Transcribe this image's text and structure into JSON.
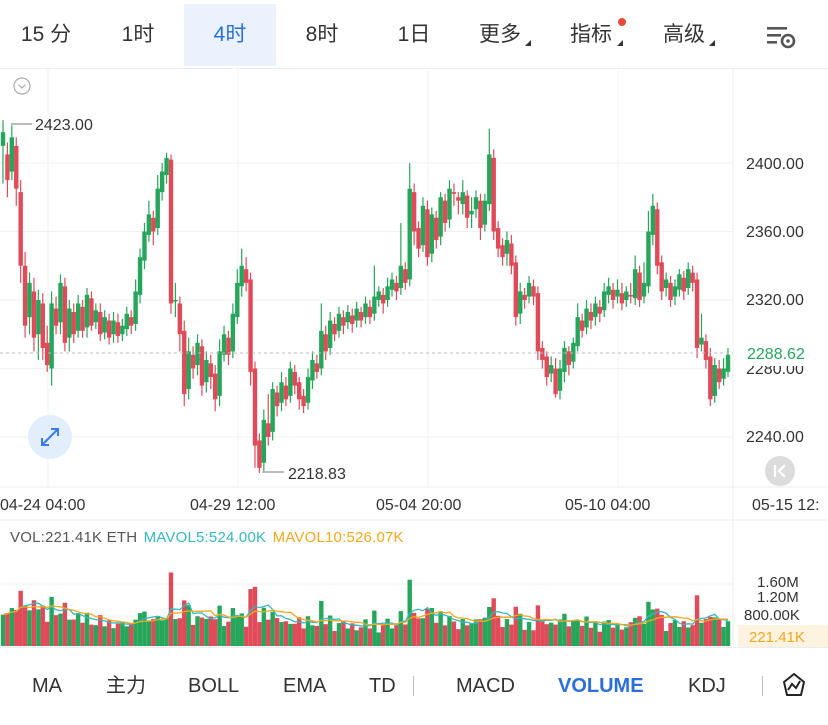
{
  "timeframes": [
    {
      "label": "15 分",
      "active": false
    },
    {
      "label": "1时",
      "active": false
    },
    {
      "label": "4时",
      "active": true
    },
    {
      "label": "8时",
      "active": false
    },
    {
      "label": "1日",
      "active": false
    },
    {
      "label": "更多",
      "active": false
    },
    {
      "label": "指标",
      "active": false
    },
    {
      "label": "高级",
      "active": false
    }
  ],
  "colors": {
    "up": "#26a65b",
    "down": "#e04b5a",
    "accent": "#2a6fdb",
    "mavol5": "#35b7bf",
    "mavol10": "#f0a81e"
  },
  "chart_data": {
    "type": "candlestick",
    "y_ticks": [
      "2400.00",
      "2360.00",
      "2320.00",
      "2280.00",
      "2240.00"
    ],
    "x_ticks": [
      "04-24 04:00",
      "04-29 12:00",
      "05-04 20:00",
      "05-10 04:00",
      "05-15 12:"
    ],
    "high_label": "2423.00",
    "low_label": "2218.83",
    "last_price": "2288.62",
    "candles": [
      [
        2410,
        2418,
        2388,
        2425
      ],
      [
        2405,
        2390,
        2380,
        2412
      ],
      [
        2395,
        2415,
        2390,
        2422
      ],
      [
        2410,
        2385,
        2375,
        2415
      ],
      [
        2383,
        2340,
        2330,
        2390
      ],
      [
        2340,
        2305,
        2298,
        2348
      ],
      [
        2310,
        2330,
        2300,
        2336
      ],
      [
        2325,
        2298,
        2290,
        2333
      ],
      [
        2300,
        2320,
        2285,
        2326
      ],
      [
        2318,
        2292,
        2285,
        2324
      ],
      [
        2295,
        2282,
        2278,
        2305
      ],
      [
        2280,
        2318,
        2270,
        2325
      ],
      [
        2315,
        2305,
        2300,
        2322
      ],
      [
        2307,
        2330,
        2300,
        2335
      ],
      [
        2328,
        2295,
        2290,
        2333
      ],
      [
        2298,
        2315,
        2290,
        2320
      ],
      [
        2313,
        2300,
        2295,
        2318
      ],
      [
        2302,
        2318,
        2298,
        2323
      ],
      [
        2316,
        2302,
        2298,
        2320
      ],
      [
        2304,
        2323,
        2298,
        2327
      ],
      [
        2321,
        2305,
        2302,
        2325
      ],
      [
        2307,
        2314,
        2303,
        2318
      ],
      [
        2313,
        2300,
        2296,
        2318
      ],
      [
        2301,
        2310,
        2297,
        2314
      ],
      [
        2308,
        2298,
        2294,
        2312
      ],
      [
        2300,
        2308,
        2295,
        2313
      ],
      [
        2307,
        2299,
        2295,
        2312
      ],
      [
        2300,
        2305,
        2296,
        2309
      ],
      [
        2303,
        2312,
        2299,
        2316
      ],
      [
        2310,
        2305,
        2300,
        2314
      ],
      [
        2306,
        2325,
        2302,
        2332
      ],
      [
        2323,
        2345,
        2318,
        2350
      ],
      [
        2343,
        2360,
        2338,
        2365
      ],
      [
        2358,
        2370,
        2354,
        2378
      ],
      [
        2368,
        2360,
        2352,
        2372
      ],
      [
        2362,
        2385,
        2358,
        2393
      ],
      [
        2383,
        2395,
        2378,
        2400
      ],
      [
        2393,
        2403,
        2388,
        2406
      ],
      [
        2402,
        2318,
        2312,
        2405
      ],
      [
        2320,
        2320,
        2310,
        2330
      ],
      [
        2318,
        2300,
        2290,
        2322
      ],
      [
        2302,
        2265,
        2258,
        2308
      ],
      [
        2268,
        2290,
        2262,
        2298
      ],
      [
        2288,
        2280,
        2274,
        2293
      ],
      [
        2282,
        2295,
        2276,
        2300
      ],
      [
        2293,
        2270,
        2264,
        2297
      ],
      [
        2272,
        2285,
        2266,
        2290
      ],
      [
        2283,
        2275,
        2268,
        2288
      ],
      [
        2277,
        2262,
        2255,
        2282
      ],
      [
        2264,
        2290,
        2258,
        2297
      ],
      [
        2288,
        2300,
        2284,
        2305
      ],
      [
        2298,
        2288,
        2282,
        2302
      ],
      [
        2290,
        2312,
        2286,
        2318
      ],
      [
        2310,
        2330,
        2306,
        2338
      ],
      [
        2328,
        2340,
        2322,
        2350
      ],
      [
        2338,
        2330,
        2325,
        2345
      ],
      [
        2332,
        2278,
        2270,
        2336
      ],
      [
        2280,
        2235,
        2222,
        2284
      ],
      [
        2238,
        2222,
        2219,
        2242
      ],
      [
        2225,
        2250,
        2220,
        2256
      ],
      [
        2248,
        2240,
        2235,
        2265
      ],
      [
        2243,
        2268,
        2238,
        2272
      ],
      [
        2266,
        2258,
        2252,
        2270
      ],
      [
        2260,
        2272,
        2255,
        2278
      ],
      [
        2270,
        2262,
        2258,
        2275
      ],
      [
        2264,
        2280,
        2260,
        2284
      ],
      [
        2278,
        2270,
        2265,
        2282
      ],
      [
        2272,
        2262,
        2256,
        2275
      ],
      [
        2264,
        2258,
        2254,
        2268
      ],
      [
        2260,
        2275,
        2256,
        2280
      ],
      [
        2273,
        2285,
        2268,
        2290
      ],
      [
        2283,
        2278,
        2274,
        2288
      ],
      [
        2280,
        2302,
        2276,
        2318
      ],
      [
        2300,
        2290,
        2285,
        2305
      ],
      [
        2292,
        2308,
        2288,
        2313
      ],
      [
        2306,
        2300,
        2296,
        2310
      ],
      [
        2302,
        2312,
        2298,
        2316
      ],
      [
        2310,
        2305,
        2300,
        2314
      ],
      [
        2307,
        2313,
        2303,
        2317
      ],
      [
        2311,
        2306,
        2301,
        2315
      ],
      [
        2308,
        2315,
        2304,
        2319
      ],
      [
        2313,
        2308,
        2304,
        2316
      ],
      [
        2310,
        2318,
        2306,
        2322
      ],
      [
        2316,
        2310,
        2306,
        2320
      ],
      [
        2312,
        2322,
        2308,
        2340
      ],
      [
        2320,
        2325,
        2316,
        2328
      ],
      [
        2323,
        2318,
        2312,
        2327
      ],
      [
        2320,
        2328,
        2316,
        2333
      ],
      [
        2326,
        2332,
        2322,
        2336
      ],
      [
        2330,
        2325,
        2320,
        2334
      ],
      [
        2327,
        2340,
        2323,
        2365
      ],
      [
        2338,
        2330,
        2326,
        2342
      ],
      [
        2332,
        2385,
        2328,
        2400
      ],
      [
        2383,
        2360,
        2352,
        2388
      ],
      [
        2362,
        2350,
        2345,
        2366
      ],
      [
        2352,
        2375,
        2348,
        2380
      ],
      [
        2373,
        2345,
        2340,
        2378
      ],
      [
        2347,
        2370,
        2342,
        2374
      ],
      [
        2368,
        2355,
        2350,
        2372
      ],
      [
        2357,
        2380,
        2352,
        2383
      ],
      [
        2378,
        2365,
        2360,
        2382
      ],
      [
        2367,
        2385,
        2362,
        2390
      ],
      [
        2383,
        2382,
        2375,
        2388
      ],
      [
        2380,
        2378,
        2370,
        2383
      ],
      [
        2376,
        2383,
        2370,
        2390
      ],
      [
        2381,
        2368,
        2362,
        2384
      ],
      [
        2370,
        2372,
        2362,
        2380
      ],
      [
        2373,
        2380,
        2368,
        2384
      ],
      [
        2378,
        2362,
        2355,
        2382
      ],
      [
        2364,
        2378,
        2360,
        2382
      ],
      [
        2376,
        2405,
        2372,
        2420
      ],
      [
        2403,
        2360,
        2355,
        2408
      ],
      [
        2362,
        2350,
        2345,
        2366
      ],
      [
        2352,
        2345,
        2340,
        2356
      ],
      [
        2347,
        2355,
        2340,
        2360
      ],
      [
        2353,
        2340,
        2335,
        2358
      ],
      [
        2342,
        2310,
        2305,
        2346
      ],
      [
        2312,
        2325,
        2306,
        2330
      ],
      [
        2323,
        2320,
        2315,
        2327
      ],
      [
        2322,
        2330,
        2318,
        2334
      ],
      [
        2328,
        2322,
        2317,
        2332
      ],
      [
        2324,
        2290,
        2285,
        2328
      ],
      [
        2292,
        2285,
        2280,
        2296
      ],
      [
        2287,
        2275,
        2270,
        2290
      ],
      [
        2277,
        2282,
        2272,
        2287
      ],
      [
        2280,
        2265,
        2263,
        2286
      ],
      [
        2267,
        2280,
        2262,
        2285
      ],
      [
        2278,
        2292,
        2272,
        2296
      ],
      [
        2290,
        2282,
        2276,
        2293
      ],
      [
        2284,
        2295,
        2280,
        2298
      ],
      [
        2293,
        2310,
        2290,
        2318
      ],
      [
        2308,
        2302,
        2298,
        2312
      ],
      [
        2304,
        2315,
        2300,
        2320
      ],
      [
        2313,
        2308,
        2303,
        2318
      ],
      [
        2310,
        2318,
        2305,
        2322
      ],
      [
        2316,
        2312,
        2307,
        2320
      ],
      [
        2314,
        2325,
        2310,
        2330
      ],
      [
        2323,
        2328,
        2318,
        2333
      ],
      [
        2326,
        2320,
        2315,
        2330
      ],
      [
        2322,
        2326,
        2318,
        2332
      ],
      [
        2324,
        2318,
        2314,
        2330
      ],
      [
        2320,
        2325,
        2316,
        2328
      ],
      [
        2323,
        2322,
        2318,
        2330
      ],
      [
        2321,
        2338,
        2317,
        2346
      ],
      [
        2336,
        2320,
        2316,
        2340
      ],
      [
        2322,
        2330,
        2318,
        2342
      ],
      [
        2328,
        2360,
        2324,
        2372
      ],
      [
        2358,
        2375,
        2352,
        2382
      ],
      [
        2373,
        2340,
        2335,
        2377
      ],
      [
        2342,
        2325,
        2320,
        2346
      ],
      [
        2327,
        2332,
        2322,
        2336
      ],
      [
        2330,
        2320,
        2316,
        2334
      ],
      [
        2322,
        2328,
        2317,
        2332
      ],
      [
        2326,
        2335,
        2322,
        2338
      ],
      [
        2333,
        2325,
        2320,
        2337
      ],
      [
        2327,
        2338,
        2323,
        2342
      ],
      [
        2336,
        2330,
        2325,
        2340
      ],
      [
        2332,
        2292,
        2286,
        2336
      ],
      [
        2294,
        2298,
        2290,
        2312
      ],
      [
        2296,
        2285,
        2280,
        2300
      ],
      [
        2287,
        2262,
        2258,
        2292
      ],
      [
        2264,
        2282,
        2260,
        2286
      ],
      [
        2280,
        2272,
        2268,
        2285
      ],
      [
        2274,
        2280,
        2270,
        2286
      ],
      [
        2278,
        2288,
        2275,
        2292
      ]
    ],
    "volume": {
      "label": "VOL:221.41K ETH",
      "mavol5_label": "MAVOL5:524.00K",
      "mavol10_label": "MAVOL10:526.07K",
      "y_ticks": [
        "1.60M",
        "1.20M",
        "800.00K"
      ],
      "last": "221.41K"
    }
  },
  "indicators": [
    {
      "label": "MA",
      "active": false
    },
    {
      "label": "主力",
      "active": false
    },
    {
      "label": "BOLL",
      "active": false
    },
    {
      "label": "EMA",
      "active": false
    },
    {
      "label": "TD",
      "active": false
    },
    {
      "label": "MACD",
      "active": false
    },
    {
      "label": "VOLUME",
      "active": true
    },
    {
      "label": "KDJ",
      "active": false
    }
  ]
}
